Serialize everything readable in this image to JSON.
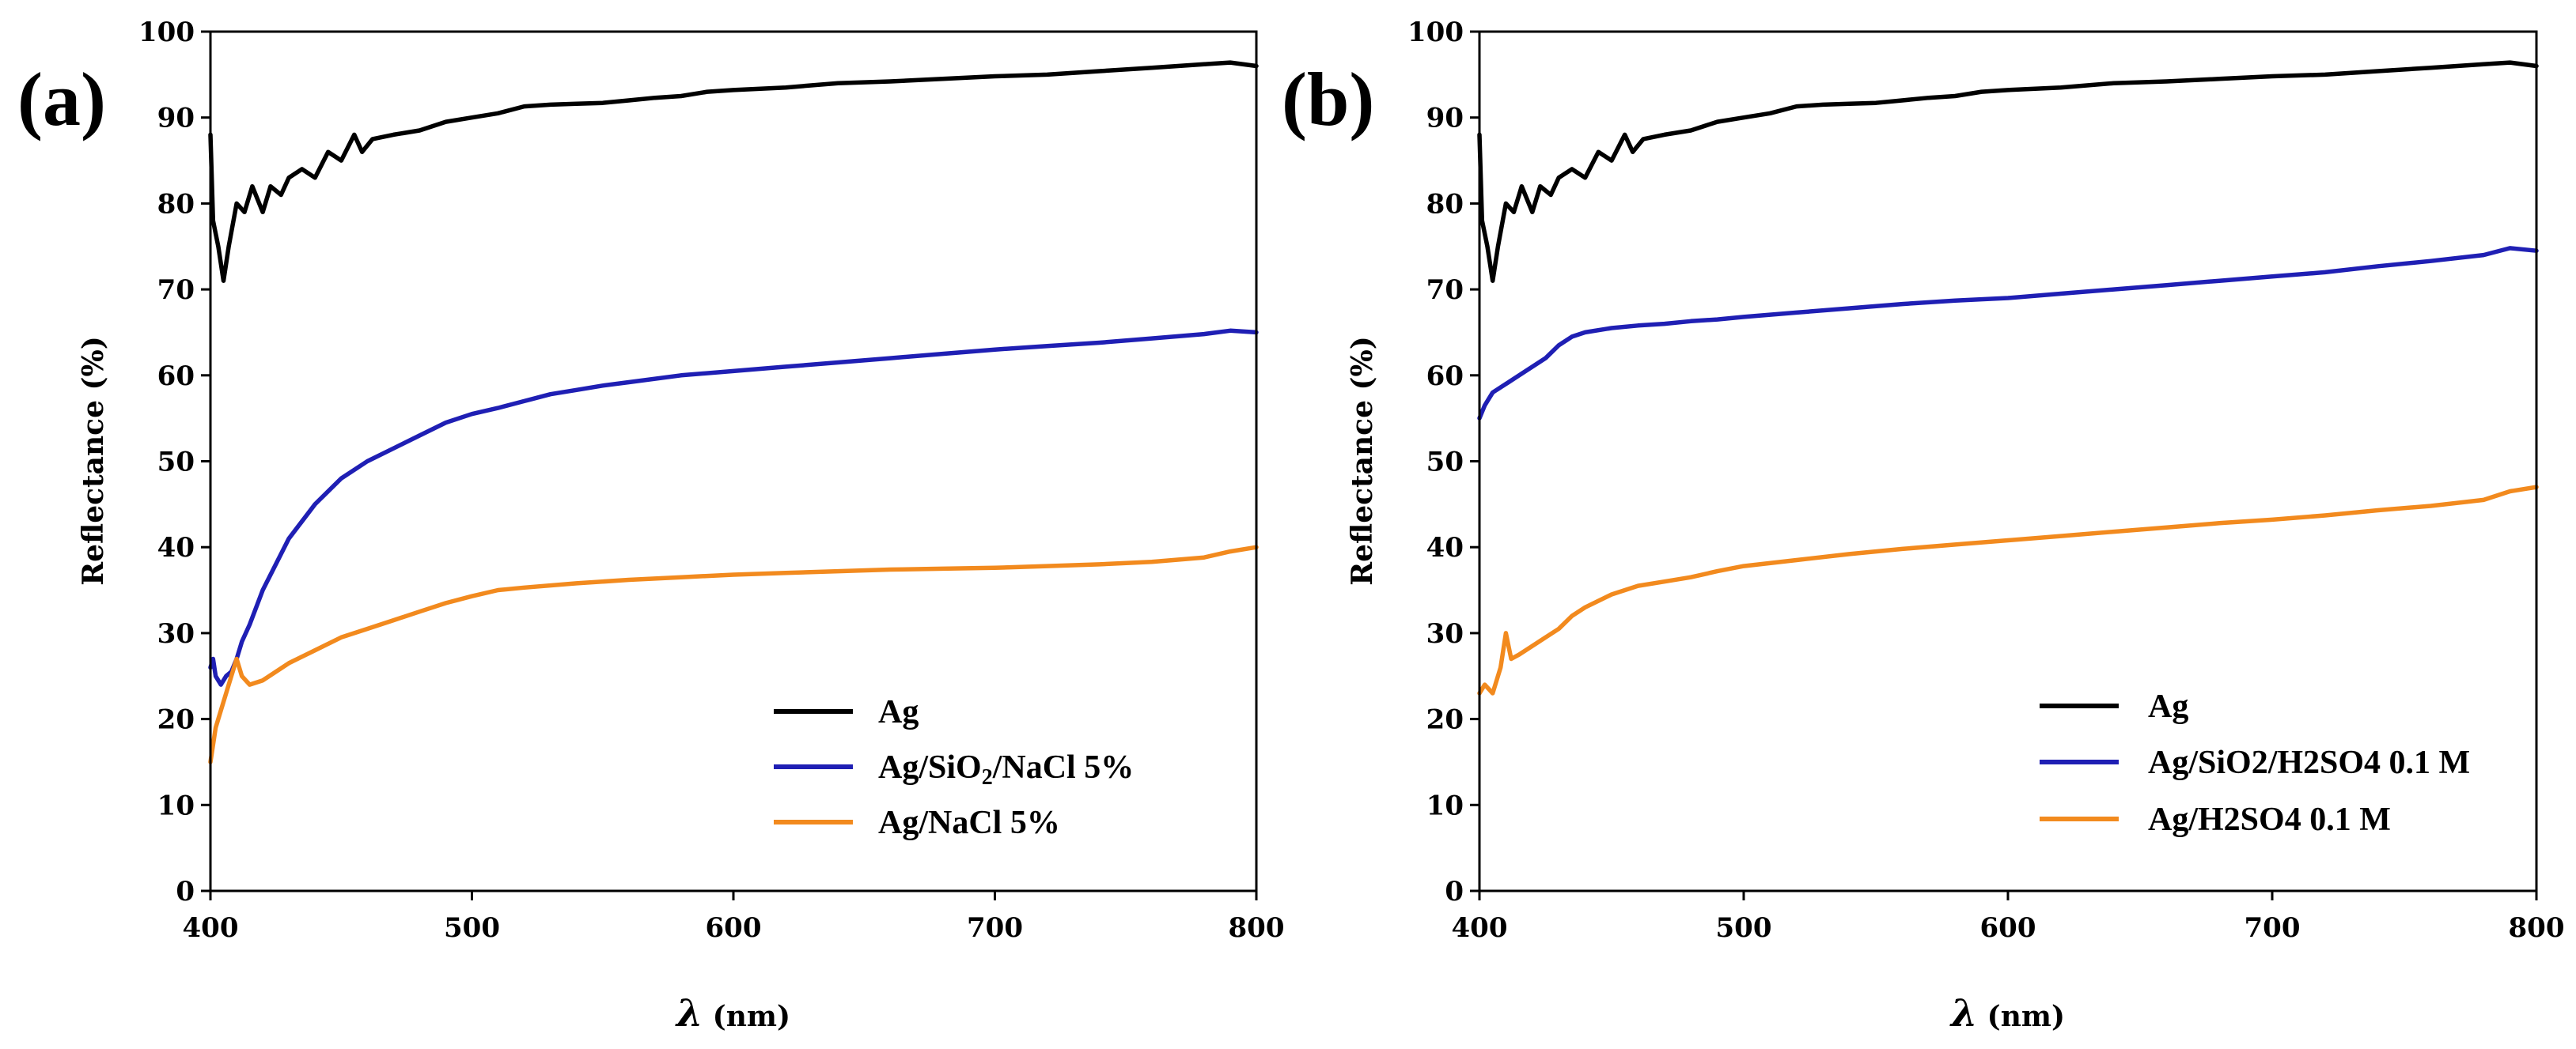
{
  "chart_data": [
    {
      "panel_label": "(a)",
      "type": "line",
      "title": "",
      "xlabel_symbol": "λ",
      "xlabel_unit": "(nm)",
      "ylabel": "Reflectance (%)",
      "xlim": [
        400,
        800
      ],
      "ylim": [
        0,
        100
      ],
      "xticks": [
        "400",
        "500",
        "600",
        "700",
        "800"
      ],
      "yticks": [
        "0",
        "10",
        "20",
        "30",
        "40",
        "50",
        "60",
        "70",
        "80",
        "90",
        "100"
      ],
      "grid": false,
      "legend_position": "bottom-right",
      "series": [
        {
          "name": "Ag",
          "color": "#000000",
          "x": [
            400,
            401,
            403,
            405,
            407,
            410,
            413,
            416,
            420,
            423,
            427,
            430,
            435,
            440,
            445,
            450,
            455,
            458,
            462,
            470,
            480,
            490,
            500,
            510,
            520,
            530,
            540,
            550,
            560,
            570,
            580,
            590,
            600,
            620,
            640,
            660,
            680,
            700,
            720,
            740,
            760,
            780,
            790,
            800
          ],
          "y": [
            88,
            78,
            75,
            71,
            75,
            80,
            79,
            82,
            79,
            82,
            81,
            83,
            84,
            83,
            86,
            85,
            88,
            86,
            87.5,
            88,
            88.5,
            89.5,
            90,
            90.5,
            91.3,
            91.5,
            91.6,
            91.7,
            92,
            92.3,
            92.5,
            93,
            93.2,
            93.5,
            94,
            94.2,
            94.5,
            94.8,
            95,
            95.4,
            95.8,
            96.2,
            96.4,
            96
          ]
        },
        {
          "name": "Ag/SiO2/NaCl 5%",
          "label_main": "Ag/SiO",
          "label_sub": "2",
          "label_rest": "/NaCl 5%",
          "color": "#1f1fb4",
          "x": [
            400,
            401,
            402,
            404,
            406,
            408,
            410,
            412,
            415,
            420,
            425,
            430,
            440,
            450,
            460,
            470,
            480,
            490,
            500,
            510,
            520,
            530,
            540,
            550,
            560,
            580,
            600,
            620,
            640,
            660,
            680,
            700,
            720,
            740,
            760,
            780,
            790,
            800
          ],
          "y": [
            26,
            27,
            25,
            24,
            25,
            25.5,
            27,
            29,
            31,
            35,
            38,
            41,
            45,
            48,
            50,
            51.5,
            53,
            54.5,
            55.5,
            56.2,
            57,
            57.8,
            58.3,
            58.8,
            59.2,
            60,
            60.5,
            61,
            61.5,
            62,
            62.5,
            63,
            63.4,
            63.8,
            64.3,
            64.8,
            65.2,
            65
          ]
        },
        {
          "name": "Ag/NaCl 5%",
          "color": "#f28a1e",
          "x": [
            400,
            401,
            402,
            404,
            406,
            408,
            410,
            412,
            415,
            420,
            425,
            430,
            440,
            450,
            460,
            470,
            480,
            490,
            500,
            510,
            520,
            540,
            560,
            580,
            600,
            620,
            640,
            660,
            680,
            700,
            720,
            740,
            760,
            780,
            790,
            800
          ],
          "y": [
            15,
            17,
            19,
            21,
            23,
            25,
            27,
            25,
            24,
            24.5,
            25.5,
            26.5,
            28,
            29.5,
            30.5,
            31.5,
            32.5,
            33.5,
            34.3,
            35,
            35.3,
            35.8,
            36.2,
            36.5,
            36.8,
            37,
            37.2,
            37.4,
            37.5,
            37.6,
            37.8,
            38,
            38.3,
            38.8,
            39.5,
            40
          ]
        }
      ]
    },
    {
      "panel_label": "(b)",
      "type": "line",
      "title": "",
      "xlabel_symbol": "λ",
      "xlabel_unit": "(nm)",
      "ylabel": "Reflectance (%)",
      "xlim": [
        400,
        800
      ],
      "ylim": [
        0,
        100
      ],
      "xticks": [
        "400",
        "500",
        "600",
        "700",
        "800"
      ],
      "yticks": [
        "0",
        "10",
        "20",
        "30",
        "40",
        "50",
        "60",
        "70",
        "80",
        "90",
        "100"
      ],
      "grid": false,
      "legend_position": "bottom-right",
      "series": [
        {
          "name": "Ag",
          "color": "#000000",
          "x": [
            400,
            401,
            403,
            405,
            407,
            410,
            413,
            416,
            420,
            423,
            427,
            430,
            435,
            440,
            445,
            450,
            455,
            458,
            462,
            470,
            480,
            490,
            500,
            510,
            520,
            530,
            540,
            550,
            560,
            570,
            580,
            590,
            600,
            620,
            640,
            660,
            680,
            700,
            720,
            740,
            760,
            780,
            790,
            800
          ],
          "y": [
            88,
            78,
            75,
            71,
            75,
            80,
            79,
            82,
            79,
            82,
            81,
            83,
            84,
            83,
            86,
            85,
            88,
            86,
            87.5,
            88,
            88.5,
            89.5,
            90,
            90.5,
            91.3,
            91.5,
            91.6,
            91.7,
            92,
            92.3,
            92.5,
            93,
            93.2,
            93.5,
            94,
            94.2,
            94.5,
            94.8,
            95,
            95.4,
            95.8,
            96.2,
            96.4,
            96
          ]
        },
        {
          "name": "Ag/SiO2/H2SO4 0.1 M",
          "color": "#1f1fb4",
          "x": [
            400,
            402,
            405,
            410,
            415,
            420,
            425,
            430,
            435,
            440,
            450,
            460,
            470,
            480,
            490,
            500,
            520,
            540,
            560,
            580,
            600,
            620,
            640,
            660,
            680,
            700,
            720,
            740,
            760,
            780,
            790,
            800
          ],
          "y": [
            55,
            56.5,
            58,
            59,
            60,
            61,
            62,
            63.5,
            64.5,
            65,
            65.5,
            65.8,
            66,
            66.3,
            66.5,
            66.8,
            67.3,
            67.8,
            68.3,
            68.7,
            69,
            69.5,
            70,
            70.5,
            71,
            71.5,
            72,
            72.7,
            73.3,
            74,
            74.8,
            74.5
          ]
        },
        {
          "name": "Ag/H2SO4 0.1 M",
          "color": "#f28a1e",
          "x": [
            400,
            402,
            405,
            408,
            410,
            412,
            415,
            420,
            425,
            430,
            435,
            440,
            450,
            460,
            470,
            480,
            490,
            500,
            520,
            540,
            560,
            580,
            600,
            620,
            640,
            660,
            680,
            700,
            720,
            740,
            760,
            780,
            790,
            800
          ],
          "y": [
            23,
            24,
            23,
            26,
            30,
            27,
            27.5,
            28.5,
            29.5,
            30.5,
            32,
            33,
            34.5,
            35.5,
            36,
            36.5,
            37.2,
            37.8,
            38.5,
            39.2,
            39.8,
            40.3,
            40.8,
            41.3,
            41.8,
            42.3,
            42.8,
            43.2,
            43.7,
            44.3,
            44.8,
            45.5,
            46.5,
            47
          ]
        }
      ]
    }
  ]
}
